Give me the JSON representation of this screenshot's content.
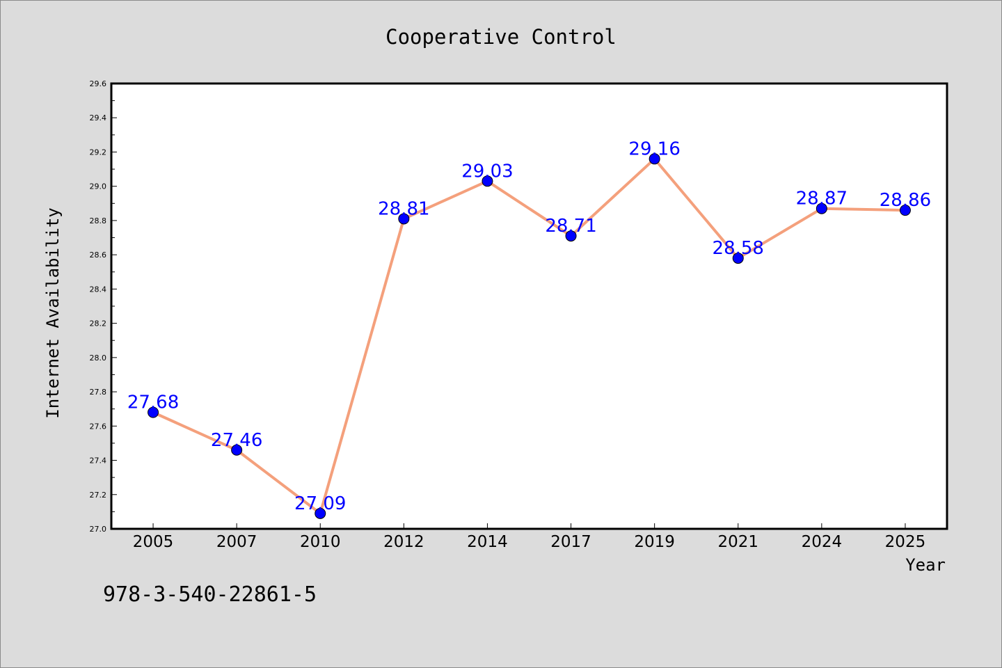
{
  "chart_data": {
    "type": "line",
    "title": "Cooperative Control",
    "xlabel": "Year",
    "ylabel": "Internet Availability",
    "categories": [
      "2005",
      "2007",
      "2010",
      "2012",
      "2014",
      "2017",
      "2019",
      "2021",
      "2024",
      "2025"
    ],
    "series": [
      {
        "values": [
          27.68,
          27.46,
          27.09,
          28.81,
          29.03,
          28.71,
          29.16,
          28.58,
          28.87,
          28.86
        ],
        "data_labels": [
          "27.68",
          "27.46",
          "27.09",
          "28.81",
          "29.03",
          "28.71",
          "29.16",
          "28.58",
          "28.87",
          "28.86"
        ]
      }
    ],
    "ylim": [
      27.0,
      29.6
    ],
    "y_ticks": [
      "27.0",
      "27.2",
      "27.4",
      "27.6",
      "27.8",
      "28.0",
      "28.2",
      "28.4",
      "28.6",
      "28.8",
      "29.0",
      "29.2",
      "29.4",
      "29.6"
    ],
    "grid": false,
    "legend": "none",
    "colors": {
      "line": "#f4a07c",
      "marker": "#0000ff",
      "data_label": "#0000ff",
      "plot_background": "#ffffff",
      "figure_background": "#dcdcdc"
    }
  },
  "footer_text": "978-3-540-22861-5"
}
